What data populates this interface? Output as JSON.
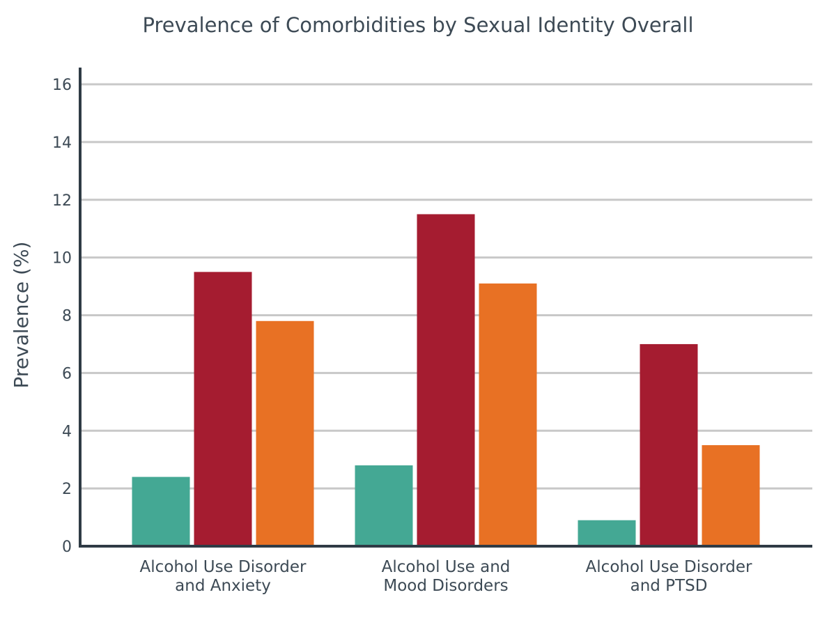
{
  "chart_data": {
    "type": "bar",
    "title": "Prevalence of Comorbidities by Sexual Identity Overall",
    "xlabel": "",
    "ylabel": "Prevalence (%)",
    "ylim": [
      0,
      16
    ],
    "yticks": [
      0,
      2,
      4,
      6,
      8,
      10,
      12,
      14,
      16
    ],
    "grid": true,
    "legend": "none",
    "categories": [
      [
        "Alcohol Use Disorder",
        "and Anxiety"
      ],
      [
        "Alcohol Use and",
        "Mood Disorders"
      ],
      [
        "Alcohol Use Disorder",
        "and PTSD"
      ]
    ],
    "series": [
      {
        "color": "#44a894",
        "values": [
          2.4,
          2.8,
          0.9
        ]
      },
      {
        "color": "#a51c30",
        "values": [
          9.5,
          11.5,
          7.0
        ]
      },
      {
        "color": "#e87124",
        "values": [
          7.8,
          9.1,
          3.5
        ]
      }
    ]
  }
}
